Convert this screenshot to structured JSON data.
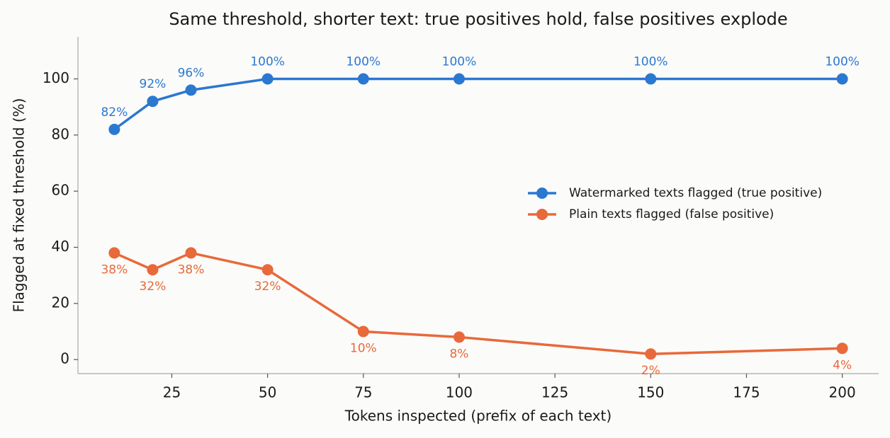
{
  "chart_data": {
    "type": "line",
    "title": "Same threshold, shorter text: true positives hold, false positives explode",
    "x_label": "Tokens inspected (prefix of each text)",
    "y_label": "Flagged at fixed threshold (%)",
    "x": [
      10,
      20,
      30,
      50,
      75,
      100,
      150,
      200
    ],
    "series": [
      {
        "name": "Watermarked texts flagged (true positive)",
        "color": "#2b78d0",
        "values": [
          82,
          92,
          96,
          100,
          100,
          100,
          100,
          100
        ],
        "value_labels": [
          "82%",
          "92%",
          "96%",
          "100%",
          "100%",
          "100%",
          "100%",
          "100%"
        ]
      },
      {
        "name": "Plain texts flagged (false positive)",
        "color": "#e8693a",
        "values": [
          38,
          32,
          38,
          32,
          10,
          8,
          2,
          4
        ],
        "value_labels": [
          "38%",
          "32%",
          "38%",
          "32%",
          "10%",
          "8%",
          "2%",
          "4%"
        ]
      }
    ],
    "xlim": [
      0.5,
      209.5
    ],
    "ylim": [
      -5,
      115
    ],
    "xticks": [
      25,
      50,
      75,
      100,
      125,
      150,
      175,
      200
    ],
    "yticks": [
      0,
      20,
      40,
      60,
      80,
      100
    ],
    "legend": "right"
  }
}
